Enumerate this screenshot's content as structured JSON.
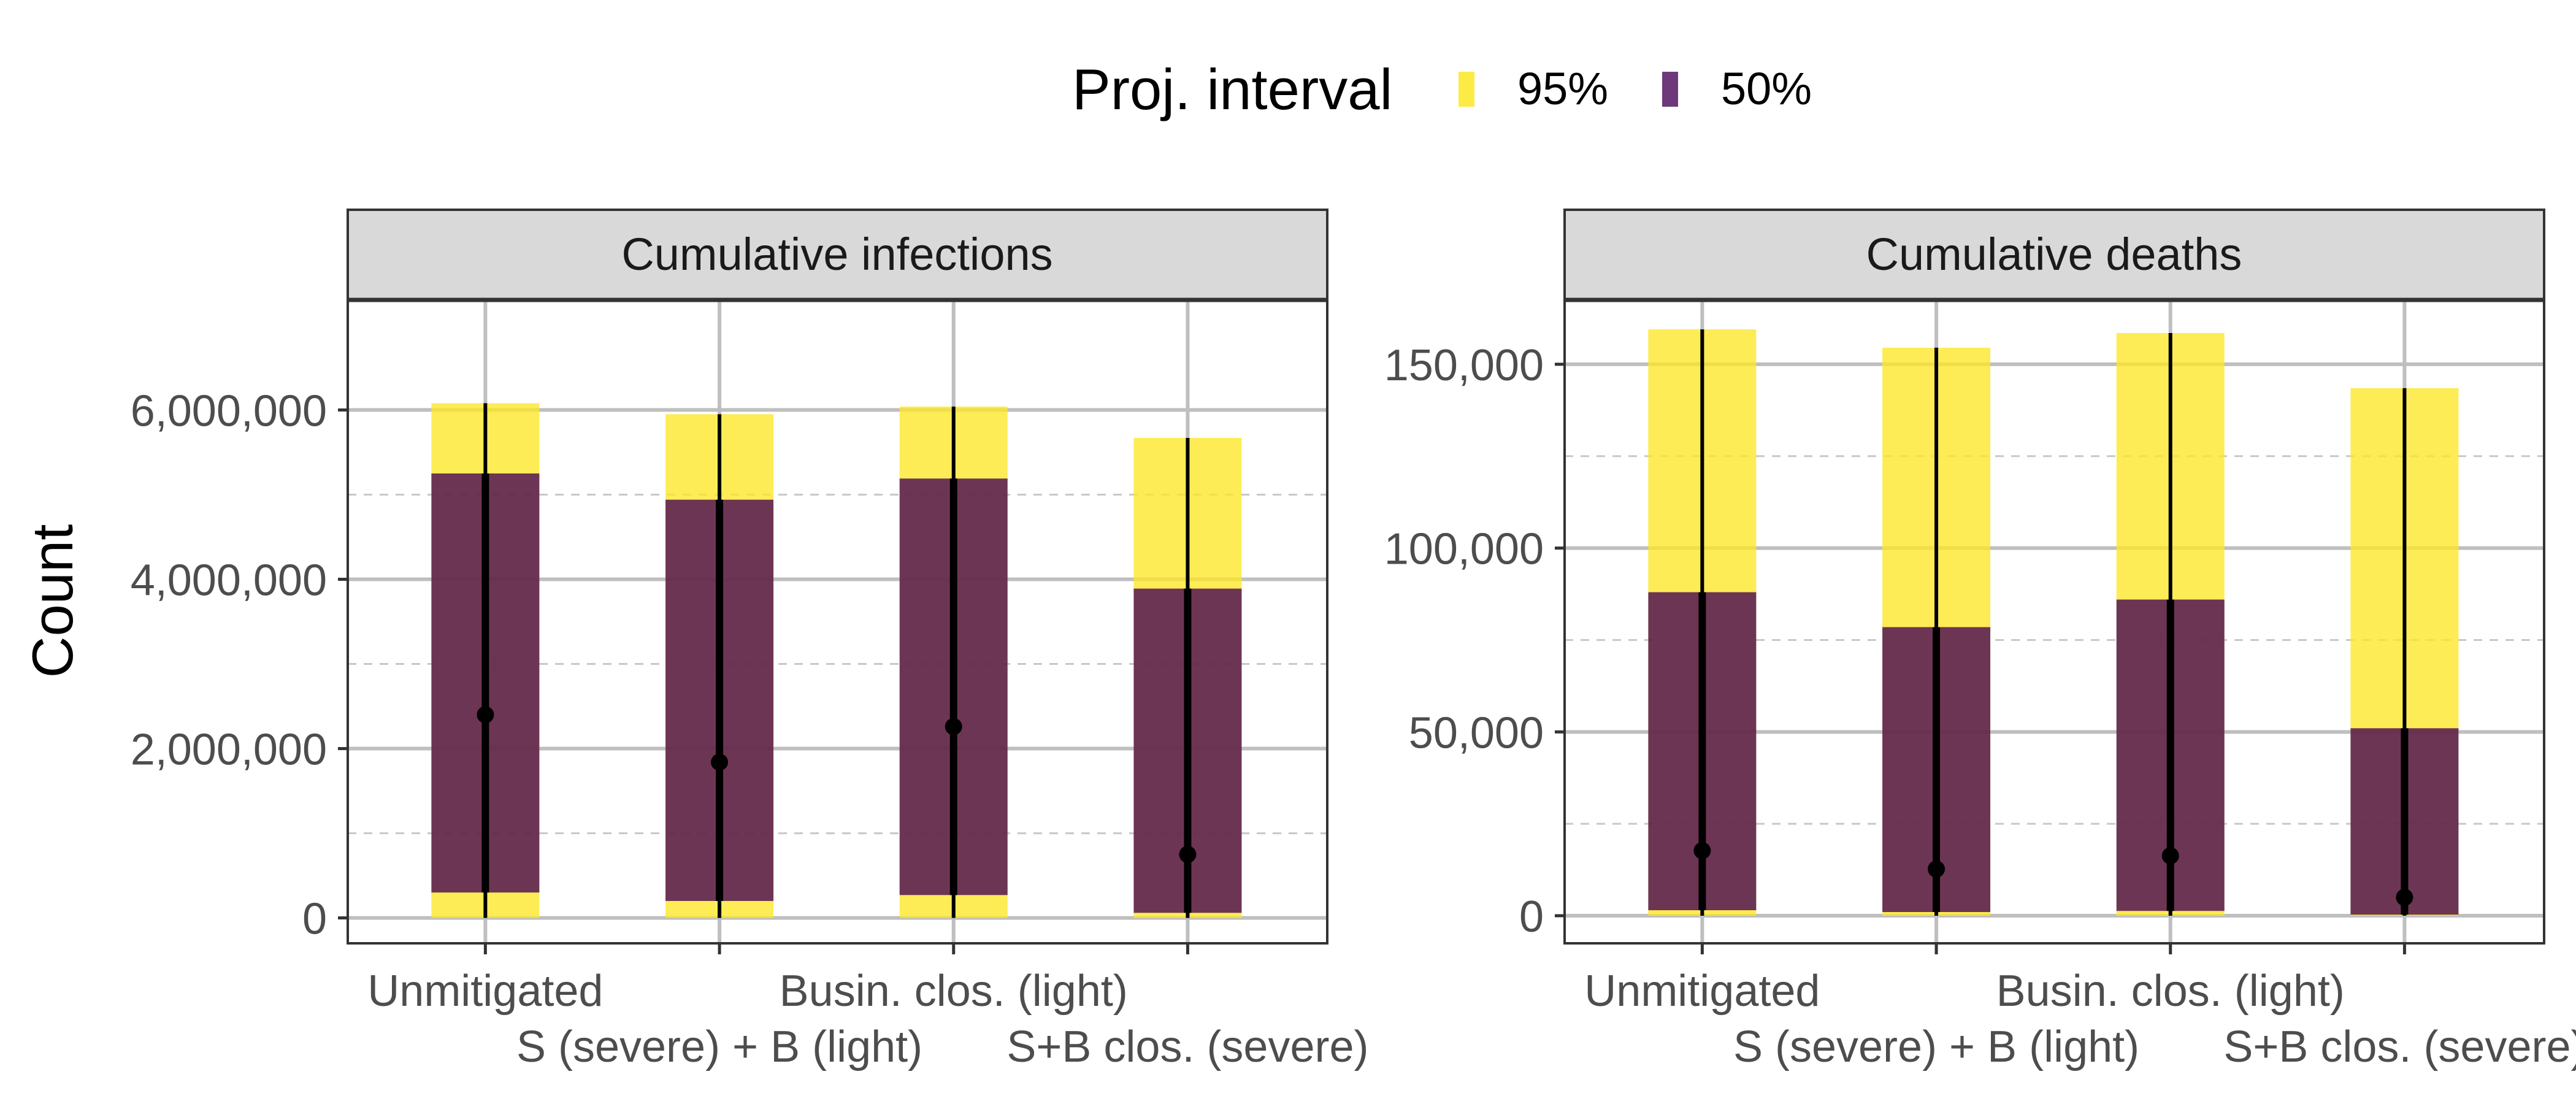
{
  "chart_data": {
    "type": "bar",
    "ylabel": "Count",
    "legend": {
      "title": "Proj. interval",
      "position": "top",
      "entries": [
        {
          "label": "95%",
          "color": "#FDE725"
        },
        {
          "label": "50%",
          "color": "#440154"
        }
      ]
    },
    "panels": [
      {
        "title": "Cumulative infections",
        "categories": [
          "Unmitigated",
          "S (severe) + B (light)",
          "Busin. clos. (light)",
          "S+B clos. (severe)"
        ],
        "ylim": [
          -300000,
          7300000
        ],
        "y_major_ticks": [
          0,
          2000000,
          4000000,
          6000000
        ],
        "y_tick_labels": [
          "0",
          "2,000,000",
          "4,000,000",
          "6,000,000"
        ],
        "y_minor_ticks": [
          1000000,
          3000000,
          5000000
        ],
        "series": [
          {
            "name": "95%",
            "low": [
              0,
              0,
              0,
              0
            ],
            "high": [
              6080000,
              5950000,
              6040000,
              5670000
            ]
          },
          {
            "name": "50%",
            "low": [
              300000,
              200000,
              270000,
              60000
            ],
            "high": [
              5250000,
              4940000,
              5190000,
              3890000
            ]
          }
        ],
        "median": [
          2400000,
          1840000,
          2260000,
          750000
        ],
        "range": {
          "low": [
            0,
            0,
            0,
            0
          ],
          "high": [
            6080000,
            5950000,
            6040000,
            5670000
          ]
        }
      },
      {
        "title": "Cumulative deaths",
        "categories": [
          "Unmitigated",
          "S (severe) + B (light)",
          "Busin. clos. (light)",
          "S+B clos. (severe)"
        ],
        "ylim": [
          -7500,
          167500
        ],
        "y_major_ticks": [
          0,
          50000,
          100000,
          150000
        ],
        "y_tick_labels": [
          "0",
          "50,000",
          "100,000",
          "150,000"
        ],
        "y_minor_ticks": [
          25000,
          75000,
          125000
        ],
        "series": [
          {
            "name": "95%",
            "low": [
              0,
              0,
              0,
              0
            ],
            "high": [
              159500,
              154500,
              158500,
              143500
            ]
          },
          {
            "name": "50%",
            "low": [
              1500,
              1000,
              1300,
              300
            ],
            "high": [
              88000,
              78500,
              86000,
              51000
            ]
          }
        ],
        "median": [
          17700,
          12700,
          16300,
          5000
        ],
        "range": {
          "low": [
            0,
            0,
            0,
            0
          ],
          "high": [
            159500,
            154500,
            158500,
            143500
          ]
        }
      }
    ],
    "grid": true
  },
  "colors": {
    "interval_95": "#FDE725",
    "interval_50": "#440154",
    "strip_fill": "#d9d9d9",
    "grid_major": "#bfbfbf",
    "grid_minor": "#c8c8c8",
    "panel_border": "#333333",
    "tick_text": "#4d4d4d"
  }
}
